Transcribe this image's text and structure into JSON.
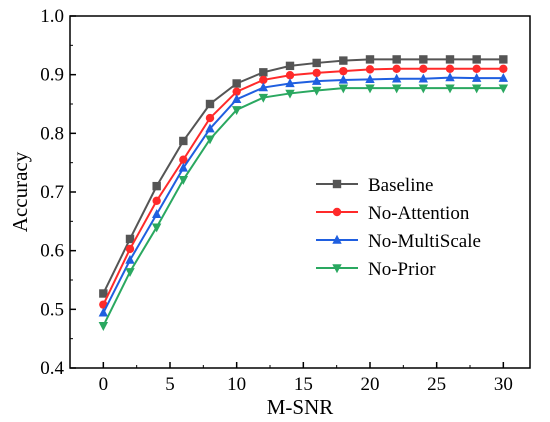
{
  "chart_data": {
    "type": "line",
    "xlabel": "M-SNR",
    "ylabel": "Accuracy",
    "xlim": [
      -2.5,
      32
    ],
    "ylim": [
      0.4,
      1.0
    ],
    "xticks": [
      0,
      5,
      10,
      15,
      20,
      25,
      30
    ],
    "yticks": [
      0.4,
      0.5,
      0.6,
      0.7,
      0.8,
      0.9,
      1.0
    ],
    "x": [
      0,
      2,
      4,
      6,
      8,
      10,
      12,
      14,
      16,
      18,
      20,
      22,
      24,
      26,
      28,
      30
    ],
    "grid": false,
    "legend_position": "center-right",
    "series": [
      {
        "name": "Baseline",
        "color": "#555555",
        "marker": "square",
        "values": [
          0.527,
          0.62,
          0.71,
          0.787,
          0.85,
          0.885,
          0.904,
          0.915,
          0.92,
          0.924,
          0.926,
          0.926,
          0.926,
          0.926,
          0.926,
          0.926
        ]
      },
      {
        "name": "No-Attention",
        "color": "#ff2a2a",
        "marker": "circle",
        "values": [
          0.508,
          0.603,
          0.685,
          0.755,
          0.826,
          0.871,
          0.891,
          0.899,
          0.903,
          0.906,
          0.909,
          0.91,
          0.91,
          0.91,
          0.91,
          0.91
        ]
      },
      {
        "name": "No-MultiScale",
        "color": "#1f5fe0",
        "marker": "triangle-up",
        "values": [
          0.494,
          0.584,
          0.662,
          0.741,
          0.808,
          0.858,
          0.878,
          0.885,
          0.889,
          0.891,
          0.892,
          0.893,
          0.893,
          0.895,
          0.894,
          0.894
        ]
      },
      {
        "name": "No-Prior",
        "color": "#2aa860",
        "marker": "triangle-down",
        "values": [
          0.472,
          0.564,
          0.64,
          0.721,
          0.79,
          0.84,
          0.861,
          0.868,
          0.873,
          0.877,
          0.877,
          0.877,
          0.877,
          0.877,
          0.877,
          0.877
        ]
      }
    ]
  }
}
